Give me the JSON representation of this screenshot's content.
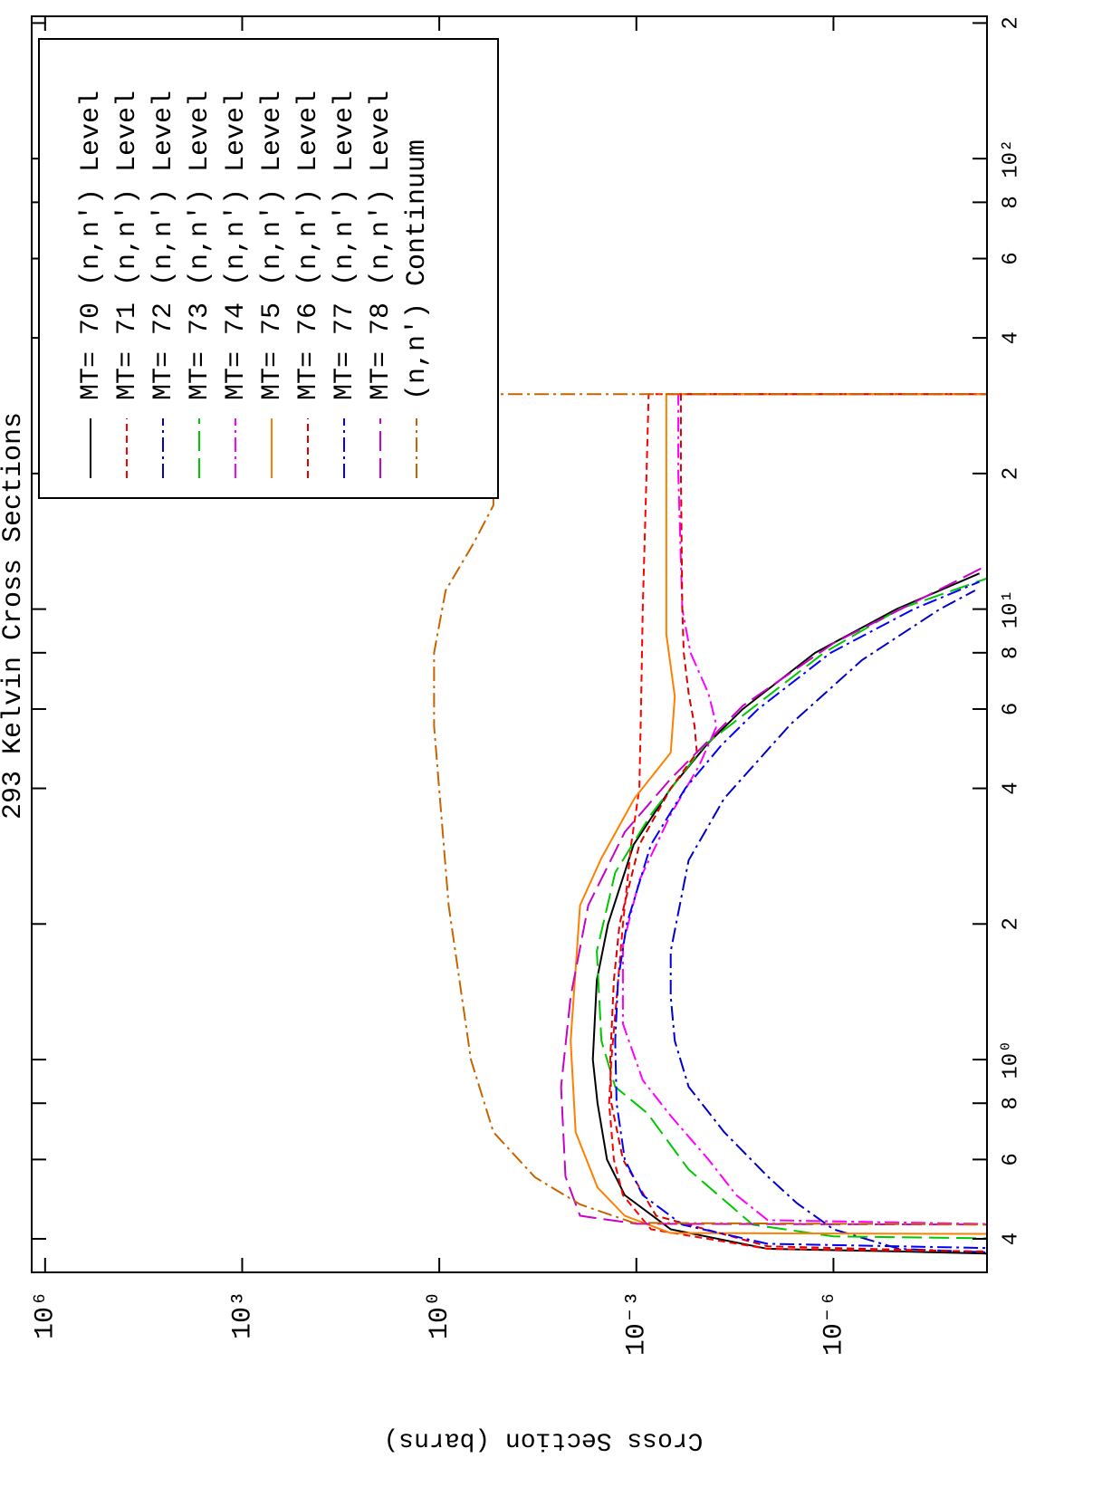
{
  "chart_data": {
    "type": "line",
    "title": "293 Kelvin Cross Sections",
    "ylabel": "Cross Section (barns)",
    "xscale": "log",
    "yscale": "log",
    "xlim": [
      0.337,
      207
    ],
    "ylim": [
      4.6e-09,
      1600000.0
    ],
    "xticks": [
      {
        "value": 0.4,
        "label": "4"
      },
      {
        "value": 0.6,
        "label": "6"
      },
      {
        "value": 0.8,
        "label": "8"
      },
      {
        "value": 1,
        "label": "10⁰"
      },
      2,
      4,
      6,
      8,
      {
        "value": 10,
        "label": "10¹"
      },
      {
        "value": 20,
        "label": "2"
      },
      {
        "value": 40,
        "label": "4"
      },
      {
        "value": 60,
        "label": "6"
      },
      {
        "value": 80,
        "label": "8"
      },
      {
        "value": 100,
        "label": "10²"
      },
      {
        "value": 200,
        "label": "2"
      }
    ],
    "yticks": [
      {
        "value": 1000000,
        "label": "10⁶"
      },
      {
        "value": 1000,
        "label": "10³"
      },
      {
        "value": 1,
        "label": "10⁰"
      },
      {
        "value": 0.001,
        "label": "10⁻³"
      },
      {
        "value": 1e-06,
        "label": "10⁻⁶"
      }
    ],
    "legend": "upper right",
    "series": [
      {
        "name": "MT= 70 (n,n') Level",
        "color": "#000000",
        "style": "solid",
        "x": [
          0.369,
          0.375,
          0.38,
          0.42,
          0.5,
          0.6,
          0.8,
          1,
          1.5,
          2,
          3,
          4,
          5,
          6,
          8,
          10,
          12
        ],
        "values": [
          1e-09,
          1e-07,
          1e-05,
          0.0003,
          0.0015,
          0.0028,
          0.0039,
          0.0046,
          0.004,
          0.0027,
          0.0011,
          0.0003,
          8.5e-05,
          2.4e-05,
          1.9e-06,
          1.1e-07,
          6e-09
        ]
      },
      {
        "name": "MT= 71 (n,n') Level",
        "color": "#ff0000",
        "style": "dashed",
        "x": [
          0.374,
          0.38,
          0.42,
          0.5,
          0.6,
          0.8,
          1,
          2,
          3,
          4,
          6,
          10,
          20,
          30,
          30
        ],
        "values": [
          1e-09,
          1e-05,
          0.0006,
          0.0016,
          0.0022,
          0.0026,
          0.0024,
          0.0016,
          0.0012,
          0.0009,
          0.00085,
          0.0008,
          0.0007,
          0.00065,
          1e-09
        ]
      },
      {
        "name": "MT= 72 (n,n') Level",
        "color": "#0000c8",
        "style": "dash-dot",
        "x": [
          0.37,
          0.38,
          0.42,
          0.48,
          0.55,
          0.69,
          0.87,
          1.1,
          1.38,
          1.74,
          2.77,
          3.8,
          5.55,
          7.7,
          10,
          11
        ],
        "values": [
          1e-09,
          1e-07,
          1e-06,
          3.6e-06,
          1e-05,
          4.6e-05,
          0.00016,
          0.00026,
          0.0003,
          0.0003,
          0.00016,
          4.6e-05,
          4.5e-06,
          3.7e-07,
          2.4e-08,
          7e-09
        ]
      },
      {
        "name": "MT= 73 (n,n') Level",
        "color": "#00c800",
        "style": "long-dash",
        "x": [
          0.4,
          0.405,
          0.43,
          0.57,
          0.76,
          0.87,
          1.1,
          1.74,
          2.6,
          3.5,
          5,
          8,
          10,
          11.7
        ],
        "values": [
          1e-09,
          1e-06,
          1.7e-05,
          0.00016,
          0.00068,
          0.0021,
          0.0034,
          0.004,
          0.0021,
          0.0006,
          9e-05,
          1.4e-06,
          1e-07,
          4.6e-09
        ]
      },
      {
        "name": "MT= 74 (n,n') Level",
        "color": "#ff00ff",
        "style": "dash-dot",
        "x": [
          0.43,
          0.44,
          0.5,
          0.6,
          0.75,
          0.9,
          1.2,
          1.8,
          2.5,
          3.5,
          4.5,
          5.5,
          6.5,
          8,
          10,
          20,
          30,
          30
        ],
        "values": [
          1e-09,
          1e-05,
          3e-05,
          8e-05,
          0.0003,
          0.0008,
          0.0016,
          0.0016,
          0.0009,
          0.0003,
          0.00011,
          6e-05,
          8e-05,
          0.00015,
          0.0002,
          0.00023,
          0.00023,
          1e-09
        ]
      },
      {
        "name": "MT= 75 (n,n') Level",
        "color": "#ff8000",
        "style": "solid",
        "x": [
          0.41,
          0.412,
          0.45,
          0.52,
          0.69,
          1.1,
          2.2,
          2.8,
          3.8,
          4.8,
          6.4,
          8.8,
          20,
          30,
          30
        ],
        "values": [
          1e-09,
          0.0003,
          0.0015,
          0.0039,
          0.0084,
          0.01,
          0.0072,
          0.0034,
          0.00107,
          0.0003,
          0.00026,
          0.00035,
          0.00035,
          0.00035,
          1e-09
        ]
      },
      {
        "name": "MT= 76 (n,n') Level",
        "color": "#dc0000",
        "style": "dashed",
        "x": [
          0.372,
          0.385,
          0.45,
          0.6,
          0.8,
          1,
          1.5,
          2,
          3,
          4,
          4.8,
          5.5,
          6.5,
          8,
          10,
          20,
          30,
          30
        ],
        "values": [
          1e-09,
          1e-05,
          0.0005,
          0.0016,
          0.0024,
          0.0025,
          0.0022,
          0.0018,
          0.0009,
          0.0003,
          0.00012,
          0.00013,
          0.00016,
          0.00019,
          0.0002,
          0.00021,
          0.00021,
          1e-09
        ]
      },
      {
        "name": "MT= 77 (n,n') Level",
        "color": "#0000ff",
        "style": "dash-dot",
        "x": [
          0.38,
          0.39,
          0.43,
          0.5,
          0.6,
          0.8,
          1.1,
          1.5,
          2,
          3,
          4,
          5,
          6,
          8,
          10,
          11.5
        ],
        "values": [
          1e-09,
          1e-05,
          0.0002,
          0.0008,
          0.0015,
          0.002,
          0.0021,
          0.0019,
          0.0014,
          0.0006,
          0.00018,
          5e-05,
          1.4e-05,
          1.1e-06,
          6e-08,
          6e-09
        ]
      },
      {
        "name": "MT= 78 (n,n') Level",
        "color": "#c800c8",
        "style": "long-dash",
        "x": [
          0.43,
          0.432,
          0.45,
          0.55,
          0.87,
          1.38,
          2.2,
          3.2,
          4.2,
          6.1,
          8.4,
          12.5
        ],
        "values": [
          1e-09,
          0.001,
          0.0072,
          0.012,
          0.014,
          0.01,
          0.0054,
          0.0015,
          0.0003,
          2.4e-05,
          1e-06,
          4.6e-09
        ]
      },
      {
        "name": "(n,n') Continuum",
        "color": "#c86400",
        "style": "dash-dot",
        "x": [
          0.43,
          0.434,
          0.477,
          0.548,
          0.69,
          1,
          2.2,
          5.5,
          8,
          11,
          14,
          17,
          30,
          30
        ],
        "values": [
          1e-09,
          0.0011,
          0.0072,
          0.035,
          0.15,
          0.33,
          0.72,
          1.2,
          1.2,
          0.8,
          0.3,
          0.15,
          0.15,
          1e-09
        ]
      }
    ]
  }
}
